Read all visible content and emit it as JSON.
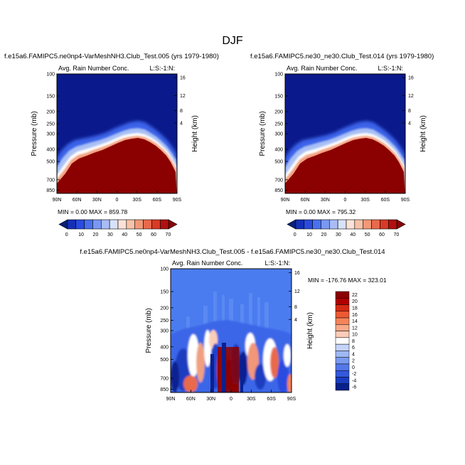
{
  "figure": {
    "title": "DJF"
  },
  "chart_data": [
    {
      "type": "heatmap",
      "title": "f.e15a6.FAMIPC5.ne0np4-VarMeshNH3.Club_Test.005 (yrs 1979-1980)",
      "subtitle": "Avg. Rain Number Conc.",
      "corner_label": "L:S:-1:N:",
      "xlabel": "",
      "ylabel": "Pressure (mb)",
      "y2label": "Height (km)",
      "x_ticks": [
        "90N",
        "60N",
        "30N",
        "0",
        "30S",
        "60S",
        "90S"
      ],
      "y_ticks": [
        "100",
        "150",
        "200",
        "250",
        "300",
        "400",
        "500",
        "700",
        "850"
      ],
      "y2_ticks": [
        "16",
        "12",
        "8",
        "4"
      ],
      "stats_text": "MIN =   0.00  MAX = 859.78",
      "colorbar_labels": [
        "0",
        "10",
        "20",
        "30",
        "40",
        "50",
        "60",
        "70"
      ],
      "colorbar_orientation": "horizontal"
    },
    {
      "type": "heatmap",
      "title": "f.e15a6.FAMIPC5.ne30_ne30.Club_Test.014 (yrs 1979-1980)",
      "subtitle": "Avg. Rain Number Conc.",
      "corner_label": "L:S:-1:N:",
      "xlabel": "",
      "ylabel": "Pressure (mb)",
      "y2label": "Height (km)",
      "x_ticks": [
        "90N",
        "60N",
        "30N",
        "0",
        "30S",
        "60S",
        "90S"
      ],
      "y_ticks": [
        "100",
        "150",
        "200",
        "250",
        "300",
        "400",
        "500",
        "700",
        "850"
      ],
      "y2_ticks": [
        "16",
        "12",
        "8",
        "4"
      ],
      "stats_text": "MIN =   0.00  MAX = 795.32",
      "colorbar_labels": [
        "0",
        "10",
        "20",
        "30",
        "40",
        "50",
        "60",
        "70"
      ],
      "colorbar_orientation": "horizontal"
    },
    {
      "type": "heatmap",
      "title": "f.e15a6.FAMIPC5.ne0np4-VarMeshNH3.Club_Test.005 - f.e15a6.FAMIPC5.ne30_ne30.Club_Test.014",
      "subtitle": "Avg. Rain Number Conc.",
      "corner_label": "L:S:-1:N:",
      "xlabel": "",
      "ylabel": "Pressure (mb)",
      "y2label": "Height (km)",
      "x_ticks": [
        "90N",
        "60N",
        "30N",
        "0",
        "30S",
        "60S",
        "90S"
      ],
      "y_ticks": [
        "100",
        "150",
        "200",
        "250",
        "300",
        "400",
        "500",
        "700",
        "850"
      ],
      "y2_ticks": [
        "16",
        "12",
        "8",
        "4"
      ],
      "stats_text": "MIN = -176.76  MAX = 323.01",
      "colorbar_labels": [
        "22",
        "20",
        "18",
        "16",
        "14",
        "12",
        "10",
        "8",
        "6",
        "4",
        "2",
        "0",
        "-2",
        "-4",
        "-6"
      ],
      "colorbar_orientation": "vertical"
    }
  ],
  "colors": {
    "deep_blue": "#0a1a8c",
    "mid_blue": "#2e55e6",
    "field_blue": "#4a7cf0",
    "dark_red": "#8b0000",
    "white": "#ffffff",
    "cbar_panels": [
      "#08207a",
      "#1630b4",
      "#2a4be0",
      "#4a70ee",
      "#7a98f2",
      "#a8bdf6",
      "#d8e2fa",
      "#fbe2d8",
      "#f8c2a8",
      "#f29878",
      "#e86a4c",
      "#d83a26",
      "#b01010",
      "#860606"
    ],
    "cbar_diff": [
      "#8b0000",
      "#b00000",
      "#d42a14",
      "#ec5a32",
      "#f5845a",
      "#f7aa88",
      "#fbcdb8",
      "#ffffff",
      "#c5d4fa",
      "#9fb8f4",
      "#7a9af0",
      "#5478ea",
      "#3458dc",
      "#1a3cc0",
      "#08208a"
    ]
  }
}
